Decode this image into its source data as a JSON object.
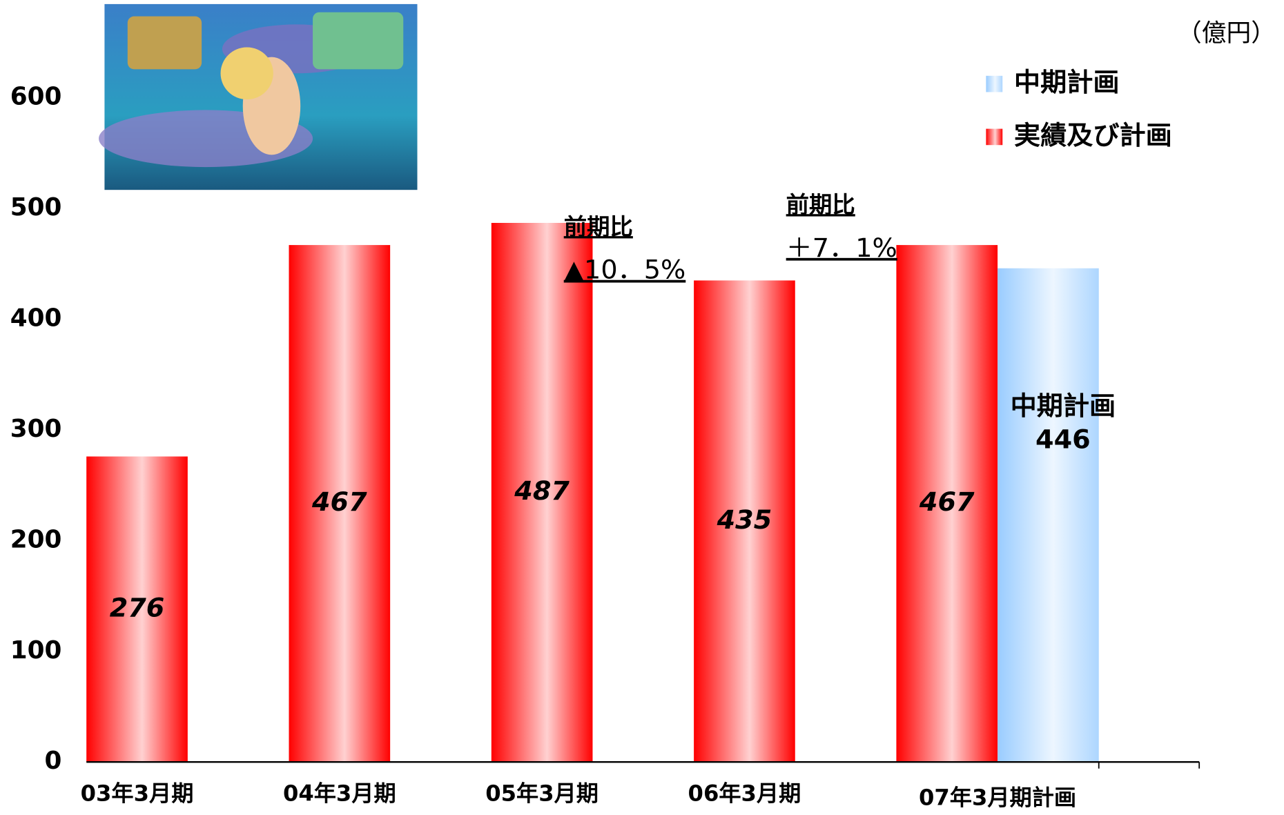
{
  "chart_data": {
    "type": "bar",
    "unit": "（億円）",
    "categories": [
      "03年3月期",
      "04年3月期",
      "05年3月期",
      "06年3月期",
      "07年3月期計画"
    ],
    "series": [
      {
        "name": "実績及び計画",
        "color": "#ff0000",
        "values": [
          276,
          467,
          487,
          435,
          467
        ]
      },
      {
        "name": "中期計画",
        "color": "#99ccff",
        "values": [
          null,
          null,
          null,
          null,
          446
        ]
      }
    ],
    "ylim": [
      0,
      600
    ],
    "yticks": [
      0,
      100,
      200,
      300,
      400,
      500,
      600
    ],
    "annotations": [
      "前期比",
      "▲10．5%",
      "前期比",
      "＋7．1%",
      "中期計画"
    ]
  }
}
